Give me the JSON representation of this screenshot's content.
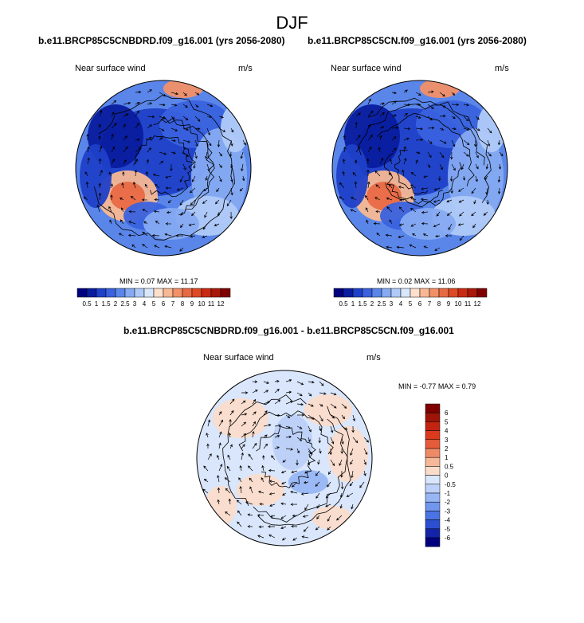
{
  "figure": {
    "title": "DJF"
  },
  "palette": {
    "blues": [
      "#00007f",
      "#0a1c9e",
      "#1f40c8",
      "#3a62de",
      "#5a86ea",
      "#86aaf2",
      "#b0caf8",
      "#d9e7fc"
    ],
    "reds": [
      "#fde0cc",
      "#f8b894",
      "#f29068",
      "#e86a44",
      "#de4a24",
      "#c92b12",
      "#a8180a",
      "#7f0000"
    ],
    "diff_blues": [
      "#00007f",
      "#1424a8",
      "#2a4fd0",
      "#4a74e4",
      "#7196ee",
      "#98b6f4",
      "#bcd0f8",
      "#d9e6fb"
    ],
    "diff_reds": [
      "#fbdccb",
      "#f6b898",
      "#ef8a66",
      "#e65c3a",
      "#db3a1c",
      "#c22410",
      "#9e1408",
      "#7f0000"
    ]
  },
  "chart_data": [
    {
      "type": "heatmap",
      "title": "b.e11.BRCP85C5CNBDRD.f09_g16.001 (yrs 2056-2080)",
      "subtitle_left": "Near surface wind",
      "subtitle_right": "m/s",
      "min_label": "MIN =",
      "min_value": "0.07",
      "max_label": "MAX =",
      "max_value": "11.17",
      "colorbar_ticks": [
        "0.5",
        "1",
        "1.5",
        "2",
        "2.5",
        "3",
        "4",
        "5",
        "6",
        "7",
        "8",
        "9",
        "10",
        "11",
        "12"
      ],
      "projection": "north polar stereographic",
      "overlay": "wind vectors"
    },
    {
      "type": "heatmap",
      "title": "b.e11.BRCP85C5CN.f09_g16.001 (yrs 2056-2080)",
      "subtitle_left": "Near surface wind",
      "subtitle_right": "m/s",
      "min_label": "MIN =",
      "min_value": "0.02",
      "max_label": "MAX =",
      "max_value": "11.06",
      "colorbar_ticks": [
        "0.5",
        "1",
        "1.5",
        "2",
        "2.5",
        "3",
        "4",
        "5",
        "6",
        "7",
        "8",
        "9",
        "10",
        "11",
        "12"
      ],
      "projection": "north polar stereographic",
      "overlay": "wind vectors"
    },
    {
      "type": "heatmap",
      "title": "b.e11.BRCP85C5CNBDRD.f09_g16.001 - b.e11.BRCP85C5CN.f09_g16.001",
      "subtitle_left": "Near surface wind",
      "subtitle_right": "m/s",
      "min_label": "MIN =",
      "min_value": "-0.77",
      "max_label": "MAX =",
      "max_value": "0.79",
      "colorbar_ticks": [
        "6",
        "5",
        "4",
        "3",
        "2",
        "1",
        "0.5",
        "0",
        "-0.5",
        "-1",
        "-2",
        "-3",
        "-4",
        "-5",
        "-6"
      ],
      "projection": "north polar stereographic",
      "overlay": "wind vectors"
    }
  ]
}
